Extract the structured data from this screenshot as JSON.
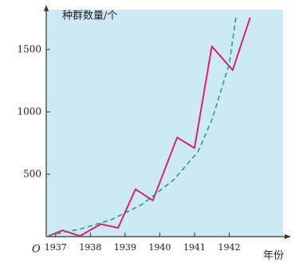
{
  "chart_data": {
    "type": "line",
    "y_label": "种群数量/个",
    "x_label": "年份",
    "origin_label": "O",
    "xlim": [
      1936.73,
      1943.55
    ],
    "ylim": [
      0,
      1820
    ],
    "xticks": [
      1937,
      1938,
      1939,
      1940,
      1941,
      1942
    ],
    "yticks": [
      500,
      1000,
      1500
    ],
    "background": "#cde9f4",
    "series": [
      {
        "color": "#d2237c",
        "style": "solid",
        "x": [
          1936.8,
          1937.2,
          1937.7,
          1938.3,
          1938.8,
          1939.3,
          1939.8,
          1940.5,
          1941.0,
          1941.5,
          1942.1,
          1942.6
        ],
        "values": [
          5,
          50,
          5,
          100,
          70,
          380,
          290,
          795,
          710,
          1525,
          1335,
          1755
        ]
      },
      {
        "color": "#2f9e74",
        "style": "dashed",
        "x": [
          1936.8,
          1937.7,
          1938.6,
          1939.5,
          1940.4,
          1941.1,
          1941.5,
          1942.0,
          1942.2
        ],
        "values": [
          10,
          60,
          135,
          260,
          455,
          680,
          935,
          1385,
          1770
        ]
      }
    ]
  }
}
